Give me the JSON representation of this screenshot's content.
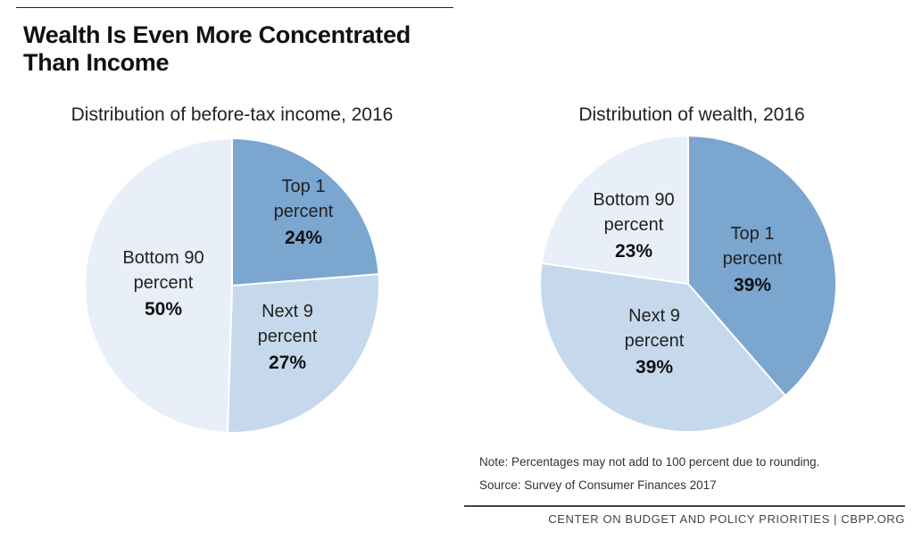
{
  "headline": "Wealth Is Even More Concentrated Than Income",
  "note": "Note: Percentages may not add to 100 percent due to rounding.",
  "source": "Source: Survey of Consumer Finances 2017",
  "footer": "CENTER ON BUDGET AND POLICY PRIORITIES | CBPP.ORG",
  "colors": {
    "top1": "#7aa6d0",
    "next9": "#c6d9ec",
    "bottom90": "#e8eff8",
    "border": "#ffffff"
  },
  "chart_data": [
    {
      "type": "pie",
      "title": "Distribution of before-tax income, 2016",
      "slices": [
        {
          "label_lines": [
            "Top 1",
            "percent"
          ],
          "value": 24,
          "value_label": "24%",
          "color_key": "top1"
        },
        {
          "label_lines": [
            "Next 9",
            "percent"
          ],
          "value": 27,
          "value_label": "27%",
          "color_key": "next9"
        },
        {
          "label_lines": [
            "Bottom 90",
            "percent"
          ],
          "value": 50,
          "value_label": "50%",
          "color_key": "bottom90"
        }
      ]
    },
    {
      "type": "pie",
      "title": "Distribution of wealth, 2016",
      "slices": [
        {
          "label_lines": [
            "Top 1",
            "percent"
          ],
          "value": 39,
          "value_label": "39%",
          "color_key": "top1"
        },
        {
          "label_lines": [
            "Next 9",
            "percent"
          ],
          "value": 39,
          "value_label": "39%",
          "color_key": "next9"
        },
        {
          "label_lines": [
            "Bottom 90",
            "percent"
          ],
          "value": 23,
          "value_label": "23%",
          "color_key": "bottom90"
        }
      ]
    }
  ]
}
